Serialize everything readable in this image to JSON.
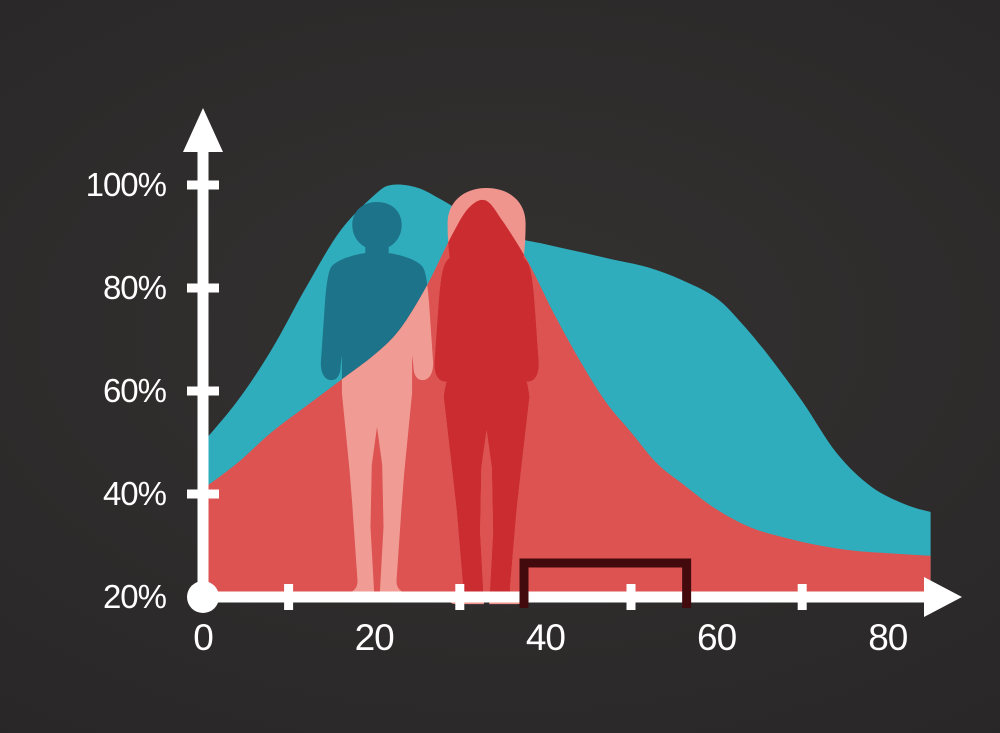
{
  "canvas": {
    "background_inner": "#343131",
    "background_outer": "#232121"
  },
  "chart_data": {
    "type": "area",
    "title": "",
    "xlabel": "",
    "ylabel": "",
    "grid": false,
    "legend": false,
    "axis_color": "#ffffff",
    "label_color": "#ffffff",
    "x_axis": {
      "range": [
        0,
        94
      ],
      "ticks": [
        {
          "value": 0,
          "label": "0"
        },
        {
          "value": 20,
          "label": "20"
        },
        {
          "value": 40,
          "label": "40"
        },
        {
          "value": 60,
          "label": "60"
        },
        {
          "value": 80,
          "label": "80"
        }
      ],
      "minor_ticks": [
        10,
        30,
        50,
        70
      ]
    },
    "y_axis": {
      "range": [
        20,
        100
      ],
      "unit": "%",
      "ticks": [
        {
          "value": 100,
          "label": "100%"
        },
        {
          "value": 80,
          "label": "80%"
        },
        {
          "value": 60,
          "label": "60%"
        },
        {
          "value": 40,
          "label": "40%"
        },
        {
          "value": 20,
          "label": "20%"
        }
      ]
    },
    "series": [
      {
        "name": "teal-curve",
        "color": "#2fadbd",
        "opacity": 1,
        "points": [
          [
            0,
            50
          ],
          [
            4,
            58
          ],
          [
            8,
            68
          ],
          [
            12,
            80
          ],
          [
            16,
            91
          ],
          [
            20,
            98
          ],
          [
            22,
            100
          ],
          [
            25,
            99.5
          ],
          [
            28,
            97
          ],
          [
            32,
            93
          ],
          [
            36,
            90
          ],
          [
            40,
            88.5
          ],
          [
            44,
            87
          ],
          [
            48,
            85.5
          ],
          [
            52,
            84
          ],
          [
            56,
            81.5
          ],
          [
            60,
            78
          ],
          [
            63,
            73
          ],
          [
            66,
            67
          ],
          [
            70,
            58
          ],
          [
            74,
            48
          ],
          [
            78,
            41.5
          ],
          [
            82,
            38
          ],
          [
            85,
            36.5
          ]
        ]
      },
      {
        "name": "red-curve",
        "color": "#e2504d",
        "opacity": 0.97,
        "points": [
          [
            0,
            41
          ],
          [
            4,
            46
          ],
          [
            8,
            52
          ],
          [
            12,
            57
          ],
          [
            16,
            62
          ],
          [
            20,
            67
          ],
          [
            23,
            72
          ],
          [
            26,
            80
          ],
          [
            29,
            90
          ],
          [
            31,
            95.5
          ],
          [
            33,
            97
          ],
          [
            35,
            93
          ],
          [
            38,
            85
          ],
          [
            41,
            75
          ],
          [
            44,
            66
          ],
          [
            47,
            58
          ],
          [
            50,
            52
          ],
          [
            53,
            46
          ],
          [
            56,
            42
          ],
          [
            60,
            37
          ],
          [
            64,
            33.5
          ],
          [
            68,
            31.5
          ],
          [
            72,
            30
          ],
          [
            76,
            29
          ],
          [
            80,
            28.5
          ],
          [
            85,
            28
          ]
        ]
      }
    ],
    "annotations": [
      {
        "type": "range-bracket",
        "x_from": 37.5,
        "x_to": 56.5,
        "color": "#430a0e"
      }
    ],
    "figures": {
      "male": {
        "base_color": "#1d7389",
        "overlay_color": "#f09b94"
      },
      "female": {
        "base_color": "#f0958e",
        "overlay_color": "#cb2c30"
      }
    }
  }
}
